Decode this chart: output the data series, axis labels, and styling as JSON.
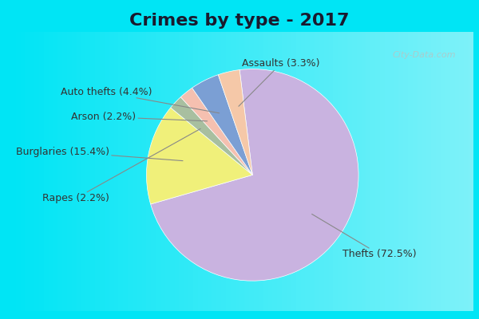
{
  "title": "Crimes by type - 2017",
  "labels": [
    "Thefts",
    "Burglaries",
    "Rapes",
    "Arson",
    "Auto thefts",
    "Assaults"
  ],
  "values": [
    72.5,
    15.4,
    2.2,
    2.2,
    4.4,
    3.3
  ],
  "colors": [
    "#c9b3e0",
    "#f0f07a",
    "#a8bfa0",
    "#f5c0b0",
    "#7b9fd4",
    "#f5c8a8"
  ],
  "background_cyan": "#00e5f5",
  "background_main": "#c8e8d0",
  "title_fontsize": 16,
  "label_fontsize": 9,
  "startangle": 97
}
